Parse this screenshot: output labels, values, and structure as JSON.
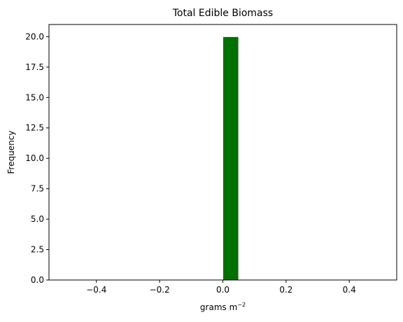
{
  "chart_data": {
    "type": "bar",
    "title": "Total Edible Biomass",
    "xlabel": {
      "base": "grams m",
      "superscript": "−2"
    },
    "ylabel": "Frequency",
    "xlim": [
      -0.55,
      0.55
    ],
    "ylim": [
      0,
      21
    ],
    "xticks": [
      -0.4,
      -0.2,
      0.0,
      0.2,
      0.4
    ],
    "xtick_labels": [
      "−0.4",
      "−0.2",
      "0.0",
      "0.2",
      "0.4"
    ],
    "yticks": [
      0,
      2.5,
      5,
      7.5,
      10,
      12.5,
      15,
      17.5,
      20
    ],
    "ytick_labels": [
      "0.0",
      "2.5",
      "5.0",
      "7.5",
      "10.0",
      "12.5",
      "15.0",
      "17.5",
      "20.0"
    ],
    "bins": [
      {
        "x0": 0.0,
        "x1": 0.05,
        "count": 20
      }
    ],
    "bar_color": "#007000",
    "bar_edge_color": "#ffffff",
    "grid": false,
    "legend": "none"
  }
}
